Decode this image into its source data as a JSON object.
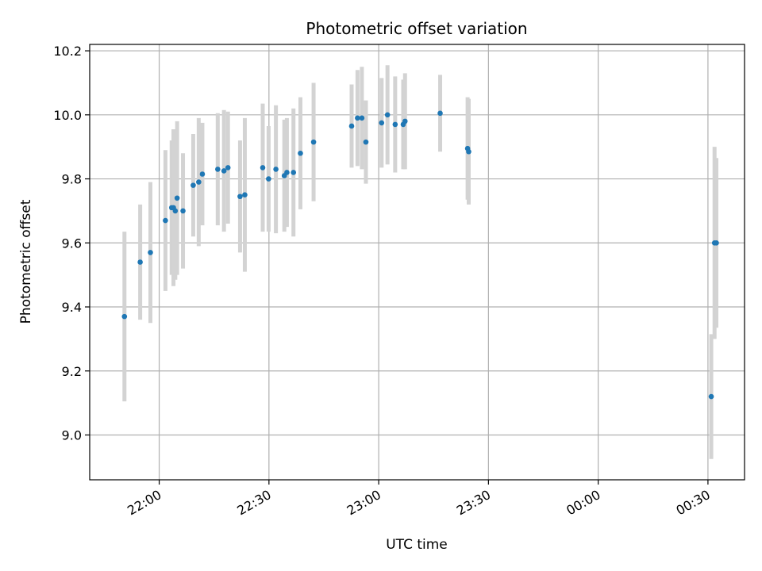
{
  "chart_data": {
    "type": "scatter",
    "title": "Photometric offset variation",
    "xlabel": "UTC time",
    "ylabel": "Photometric offset",
    "xlim": [
      "21:41",
      "00:40"
    ],
    "ylim": [
      8.86,
      10.22
    ],
    "grid": true,
    "colors": {
      "points": "#1f77b4",
      "errorbars": "#d3d3d3",
      "grid": "#b0b0b0"
    },
    "x_ticks": [
      "22:00",
      "22:30",
      "23:00",
      "23:30",
      "00:00",
      "00:30"
    ],
    "y_ticks": [
      "9.0",
      "9.2",
      "9.4",
      "9.6",
      "9.8",
      "10.0",
      "10.2"
    ],
    "points": [
      {
        "t": "21:50:30",
        "y": 9.37,
        "err": 0.265
      },
      {
        "t": "21:54:48",
        "y": 9.54,
        "err": 0.18
      },
      {
        "t": "21:57:36",
        "y": 9.57,
        "err": 0.22
      },
      {
        "t": "22:01:42",
        "y": 9.67,
        "err": 0.22
      },
      {
        "t": "22:03:24",
        "y": 9.71,
        "err": 0.21
      },
      {
        "t": "22:03:54",
        "y": 9.71,
        "err": 0.245
      },
      {
        "t": "22:04:24",
        "y": 9.7,
        "err": 0.215
      },
      {
        "t": "22:04:54",
        "y": 9.74,
        "err": 0.24
      },
      {
        "t": "22:06:30",
        "y": 9.7,
        "err": 0.18
      },
      {
        "t": "22:09:18",
        "y": 9.78,
        "err": 0.16
      },
      {
        "t": "22:10:48",
        "y": 9.79,
        "err": 0.2
      },
      {
        "t": "22:11:48",
        "y": 9.815,
        "err": 0.16
      },
      {
        "t": "22:16:00",
        "y": 9.83,
        "err": 0.175
      },
      {
        "t": "22:17:42",
        "y": 9.825,
        "err": 0.19
      },
      {
        "t": "22:18:48",
        "y": 9.835,
        "err": 0.175
      },
      {
        "t": "22:22:06",
        "y": 9.745,
        "err": 0.175
      },
      {
        "t": "22:23:24",
        "y": 9.75,
        "err": 0.24
      },
      {
        "t": "22:28:18",
        "y": 9.835,
        "err": 0.2
      },
      {
        "t": "22:29:54",
        "y": 9.8,
        "err": 0.165
      },
      {
        "t": "22:31:54",
        "y": 9.83,
        "err": 0.2
      },
      {
        "t": "22:34:12",
        "y": 9.81,
        "err": 0.175
      },
      {
        "t": "22:34:54",
        "y": 9.82,
        "err": 0.17
      },
      {
        "t": "22:36:42",
        "y": 9.82,
        "err": 0.2
      },
      {
        "t": "22:38:36",
        "y": 9.88,
        "err": 0.175
      },
      {
        "t": "22:42:12",
        "y": 9.915,
        "err": 0.185
      },
      {
        "t": "22:52:36",
        "y": 9.965,
        "err": 0.13
      },
      {
        "t": "22:54:12",
        "y": 9.99,
        "err": 0.15
      },
      {
        "t": "22:55:24",
        "y": 9.99,
        "err": 0.16
      },
      {
        "t": "22:56:30",
        "y": 9.915,
        "err": 0.13
      },
      {
        "t": "23:00:48",
        "y": 9.975,
        "err": 0.14
      },
      {
        "t": "23:02:24",
        "y": 10.0,
        "err": 0.155
      },
      {
        "t": "23:04:30",
        "y": 9.97,
        "err": 0.15
      },
      {
        "t": "23:06:42",
        "y": 9.97,
        "err": 0.14
      },
      {
        "t": "23:07:12",
        "y": 9.98,
        "err": 0.15
      },
      {
        "t": "23:16:48",
        "y": 10.005,
        "err": 0.12
      },
      {
        "t": "23:24:18",
        "y": 9.895,
        "err": 0.16
      },
      {
        "t": "23:24:36",
        "y": 9.885,
        "err": 0.165
      },
      {
        "t": "00:30:54",
        "y": 9.12,
        "err": 0.195
      },
      {
        "t": "00:31:48",
        "y": 9.6,
        "err": 0.3
      },
      {
        "t": "00:32:18",
        "y": 9.6,
        "err": 0.265
      }
    ]
  }
}
